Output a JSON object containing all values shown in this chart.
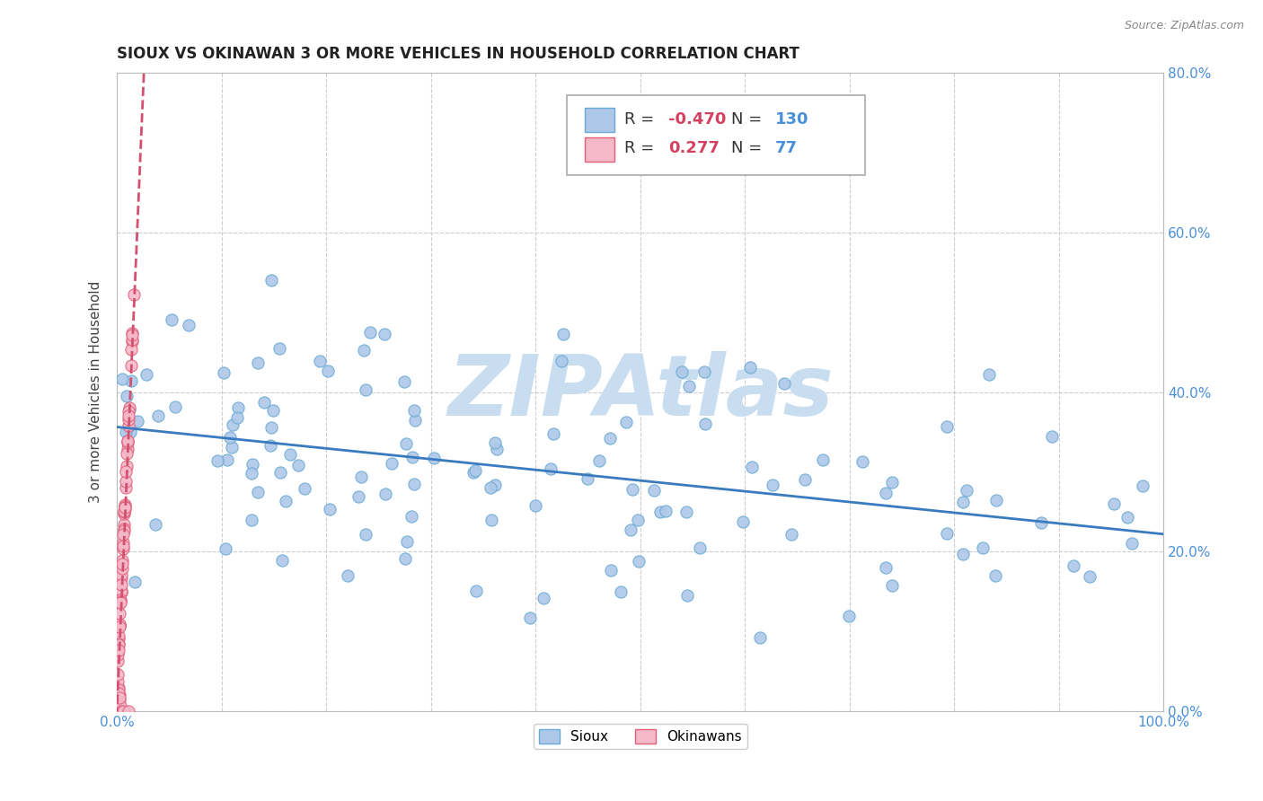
{
  "title": "SIOUX VS OKINAWAN 3 OR MORE VEHICLES IN HOUSEHOLD CORRELATION CHART",
  "source": "Source: ZipAtlas.com",
  "ylabel": "3 or more Vehicles in Household",
  "xlim": [
    0.0,
    1.0
  ],
  "ylim": [
    0.0,
    0.8
  ],
  "xticks": [
    0.0,
    0.1,
    0.2,
    0.3,
    0.4,
    0.5,
    0.6,
    0.7,
    0.8,
    0.9,
    1.0
  ],
  "xticklabels": [
    "0.0%",
    "",
    "",
    "",
    "",
    "",
    "",
    "",
    "",
    "",
    "100.0%"
  ],
  "yticks": [
    0.0,
    0.2,
    0.4,
    0.6,
    0.8
  ],
  "yticklabels_right": [
    "0.0%",
    "20.0%",
    "40.0%",
    "60.0%",
    "80.0%"
  ],
  "sioux_color": "#adc8e8",
  "sioux_edge_color": "#6aaad4",
  "okinawan_color": "#f5b8c8",
  "okinawan_edge_color": "#e0607a",
  "regression_sioux_color": "#3a7abf",
  "regression_okinawan_color": "#d45070",
  "legend_sioux_r": "-0.470",
  "legend_sioux_n": "130",
  "legend_okinawan_r": "0.277",
  "legend_okinawan_n": "77",
  "watermark": "ZIPAtlas",
  "watermark_color": "#c8ddf0",
  "background_color": "#ffffff",
  "grid_color": "#cccccc",
  "title_color": "#222222",
  "axis_label_color": "#444444",
  "tick_color": "#4a90d9",
  "source_color": "#888888",
  "legend_r_color": "#d44060",
  "legend_n_color": "#4a90d9",
  "sioux_n": 130,
  "okinawan_n": 77
}
